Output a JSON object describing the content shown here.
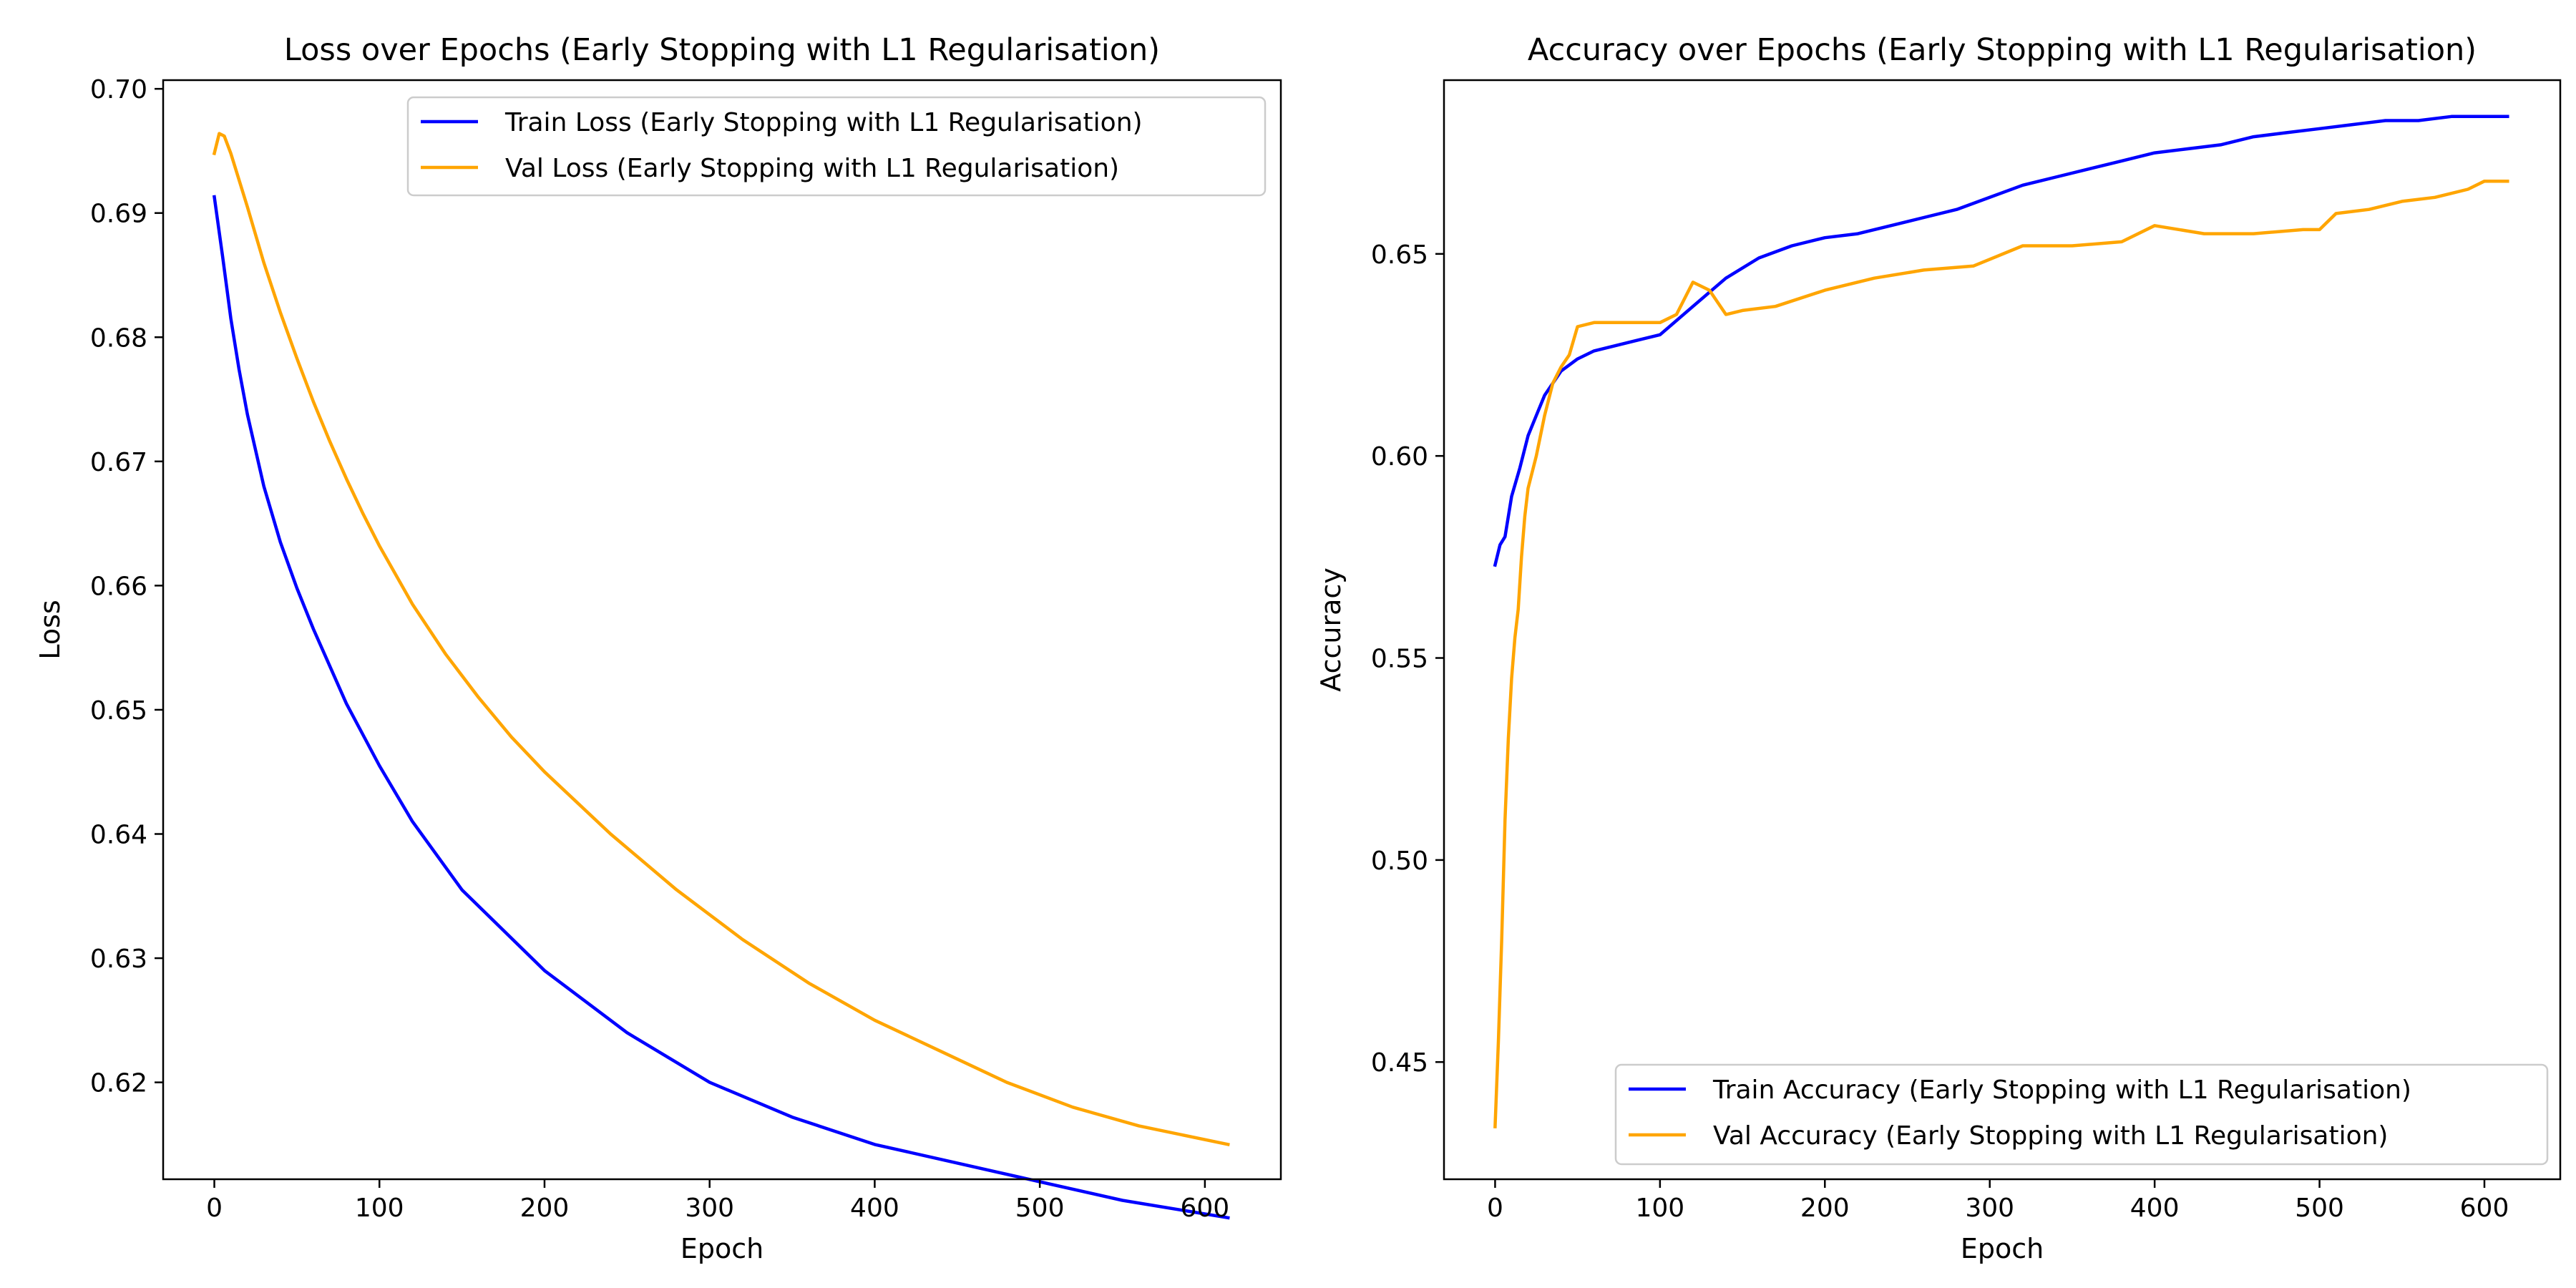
{
  "colors": {
    "train": "#0000ff",
    "val": "#ffa500",
    "axis": "#000000",
    "legend_border": "#cccccc"
  },
  "chart_data": [
    {
      "type": "line",
      "title": "Loss over Epochs (Early Stopping with L1 Regularisation)",
      "xlabel": "Epoch",
      "ylabel": "Loss",
      "xlim": [
        -31,
        646
      ],
      "ylim": [
        0.6122,
        0.7007
      ],
      "xticks": [
        0,
        100,
        200,
        300,
        400,
        500,
        600
      ],
      "yticks": [
        0.62,
        0.63,
        0.64,
        0.65,
        0.66,
        0.67,
        0.68,
        0.69,
        0.7
      ],
      "legend_position": "upper right",
      "grid": false,
      "series": [
        {
          "name": "Train Loss (Early Stopping with L1 Regularisation)",
          "color": "#0000ff",
          "points": [
            [
              0,
              0.6913
            ],
            [
              5,
              0.6865
            ],
            [
              10,
              0.6815
            ],
            [
              15,
              0.6774
            ],
            [
              20,
              0.6738
            ],
            [
              30,
              0.668
            ],
            [
              40,
              0.6635
            ],
            [
              50,
              0.6598
            ],
            [
              60,
              0.6565
            ],
            [
              80,
              0.6505
            ],
            [
              100,
              0.6455
            ],
            [
              120,
              0.641
            ],
            [
              150,
              0.6355
            ],
            [
              200,
              0.629
            ],
            [
              250,
              0.624
            ],
            [
              300,
              0.62
            ],
            [
              350,
              0.6172
            ],
            [
              400,
              0.615
            ],
            [
              450,
              0.6135
            ],
            [
              500,
              0.612
            ],
            [
              550,
              0.6105
            ],
            [
              614,
              0.6091
            ]
          ]
        },
        {
          "name": "Val Loss (Early Stopping with L1 Regularisation)",
          "color": "#ffa500",
          "points": [
            [
              0,
              0.6948
            ],
            [
              3,
              0.6964
            ],
            [
              6,
              0.6962
            ],
            [
              10,
              0.6948
            ],
            [
              20,
              0.6905
            ],
            [
              30,
              0.686
            ],
            [
              40,
              0.682
            ],
            [
              50,
              0.6783
            ],
            [
              60,
              0.6748
            ],
            [
              70,
              0.6716
            ],
            [
              80,
              0.6686
            ],
            [
              90,
              0.6658
            ],
            [
              100,
              0.6632
            ],
            [
              120,
              0.6585
            ],
            [
              140,
              0.6545
            ],
            [
              160,
              0.651
            ],
            [
              180,
              0.6478
            ],
            [
              200,
              0.645
            ],
            [
              240,
              0.64
            ],
            [
              280,
              0.6355
            ],
            [
              320,
              0.6315
            ],
            [
              360,
              0.628
            ],
            [
              400,
              0.625
            ],
            [
              440,
              0.6225
            ],
            [
              480,
              0.62
            ],
            [
              520,
              0.618
            ],
            [
              560,
              0.6165
            ],
            [
              614,
              0.615
            ]
          ]
        }
      ]
    },
    {
      "type": "line",
      "title": "Accuracy over Epochs (Early Stopping with L1 Regularisation)",
      "xlabel": "Epoch",
      "ylabel": "Accuracy",
      "xlim": [
        -31,
        646
      ],
      "ylim": [
        0.421,
        0.693
      ],
      "xticks": [
        0,
        100,
        200,
        300,
        400,
        500,
        600
      ],
      "yticks": [
        0.45,
        0.5,
        0.55,
        0.6,
        0.65
      ],
      "legend_position": "lower right",
      "grid": false,
      "series": [
        {
          "name": "Train Accuracy (Early Stopping with L1 Regularisation)",
          "color": "#0000ff",
          "points": [
            [
              0,
              0.573
            ],
            [
              3,
              0.578
            ],
            [
              6,
              0.58
            ],
            [
              10,
              0.59
            ],
            [
              15,
              0.597
            ],
            [
              20,
              0.605
            ],
            [
              25,
              0.61
            ],
            [
              30,
              0.615
            ],
            [
              40,
              0.621
            ],
            [
              50,
              0.624
            ],
            [
              60,
              0.626
            ],
            [
              80,
              0.628
            ],
            [
              100,
              0.63
            ],
            [
              120,
              0.637
            ],
            [
              140,
              0.644
            ],
            [
              160,
              0.649
            ],
            [
              180,
              0.652
            ],
            [
              200,
              0.654
            ],
            [
              220,
              0.655
            ],
            [
              240,
              0.657
            ],
            [
              260,
              0.659
            ],
            [
              280,
              0.661
            ],
            [
              300,
              0.664
            ],
            [
              320,
              0.667
            ],
            [
              340,
              0.669
            ],
            [
              360,
              0.671
            ],
            [
              380,
              0.673
            ],
            [
              400,
              0.675
            ],
            [
              420,
              0.676
            ],
            [
              440,
              0.677
            ],
            [
              460,
              0.679
            ],
            [
              480,
              0.68
            ],
            [
              500,
              0.681
            ],
            [
              520,
              0.682
            ],
            [
              540,
              0.683
            ],
            [
              560,
              0.683
            ],
            [
              580,
              0.684
            ],
            [
              614,
              0.684
            ]
          ]
        },
        {
          "name": "Val Accuracy (Early Stopping with L1 Regularisation)",
          "color": "#ffa500",
          "points": [
            [
              0,
              0.434
            ],
            [
              2,
              0.455
            ],
            [
              4,
              0.48
            ],
            [
              6,
              0.51
            ],
            [
              8,
              0.53
            ],
            [
              10,
              0.545
            ],
            [
              12,
              0.555
            ],
            [
              14,
              0.562
            ],
            [
              16,
              0.575
            ],
            [
              18,
              0.585
            ],
            [
              20,
              0.592
            ],
            [
              25,
              0.6
            ],
            [
              30,
              0.61
            ],
            [
              35,
              0.618
            ],
            [
              40,
              0.622
            ],
            [
              45,
              0.625
            ],
            [
              50,
              0.632
            ],
            [
              60,
              0.633
            ],
            [
              80,
              0.633
            ],
            [
              100,
              0.633
            ],
            [
              110,
              0.635
            ],
            [
              120,
              0.643
            ],
            [
              130,
              0.641
            ],
            [
              140,
              0.635
            ],
            [
              150,
              0.636
            ],
            [
              170,
              0.637
            ],
            [
              200,
              0.641
            ],
            [
              230,
              0.644
            ],
            [
              260,
              0.646
            ],
            [
              290,
              0.647
            ],
            [
              320,
              0.652
            ],
            [
              350,
              0.652
            ],
            [
              380,
              0.653
            ],
            [
              400,
              0.657
            ],
            [
              430,
              0.655
            ],
            [
              460,
              0.655
            ],
            [
              490,
              0.656
            ],
            [
              500,
              0.656
            ],
            [
              510,
              0.66
            ],
            [
              530,
              0.661
            ],
            [
              550,
              0.663
            ],
            [
              570,
              0.664
            ],
            [
              590,
              0.666
            ],
            [
              600,
              0.668
            ],
            [
              614,
              0.668
            ]
          ]
        }
      ]
    }
  ]
}
